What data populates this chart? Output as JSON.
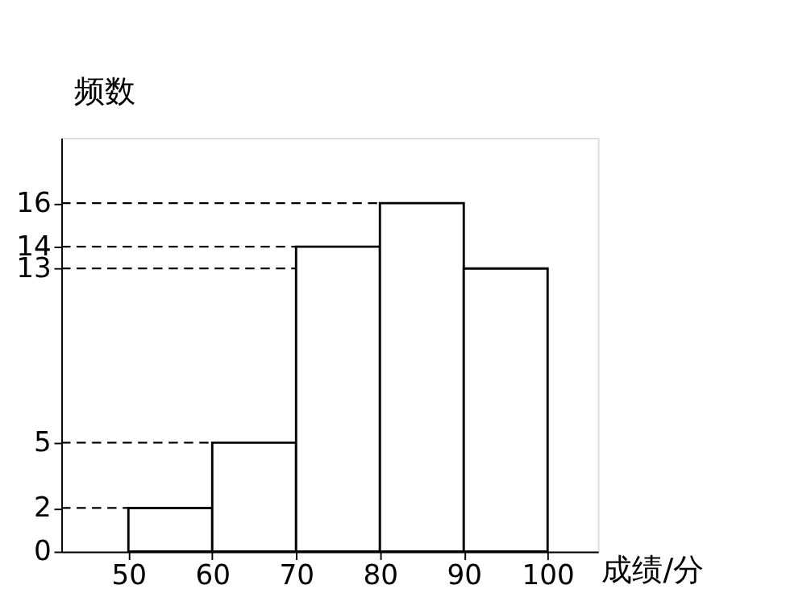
{
  "chart_data": {
    "type": "histogram",
    "xlabel": "成绩/分",
    "ylabel": "频数",
    "bins": [
      50,
      60,
      70,
      80,
      90,
      100
    ],
    "values": [
      2,
      5,
      14,
      16,
      13
    ],
    "color": "#ffffff",
    "xlim": [
      42,
      106
    ],
    "xticks": [
      50,
      60,
      70,
      80,
      90,
      100
    ],
    "ylim": [
      0,
      19
    ],
    "yticks": [
      0,
      2,
      5,
      13,
      14,
      16
    ],
    "grid": false,
    "ref_lines": [
      {
        "axis": "y",
        "value": 2,
        "line_style": "dashed"
      },
      {
        "axis": "y",
        "value": 5,
        "line_style": "dashed"
      },
      {
        "axis": "y",
        "value": 13,
        "line_style": "dashed"
      },
      {
        "axis": "y",
        "value": 14,
        "line_style": "dashed"
      },
      {
        "axis": "y",
        "value": 16,
        "line_style": "dashed"
      }
    ]
  }
}
